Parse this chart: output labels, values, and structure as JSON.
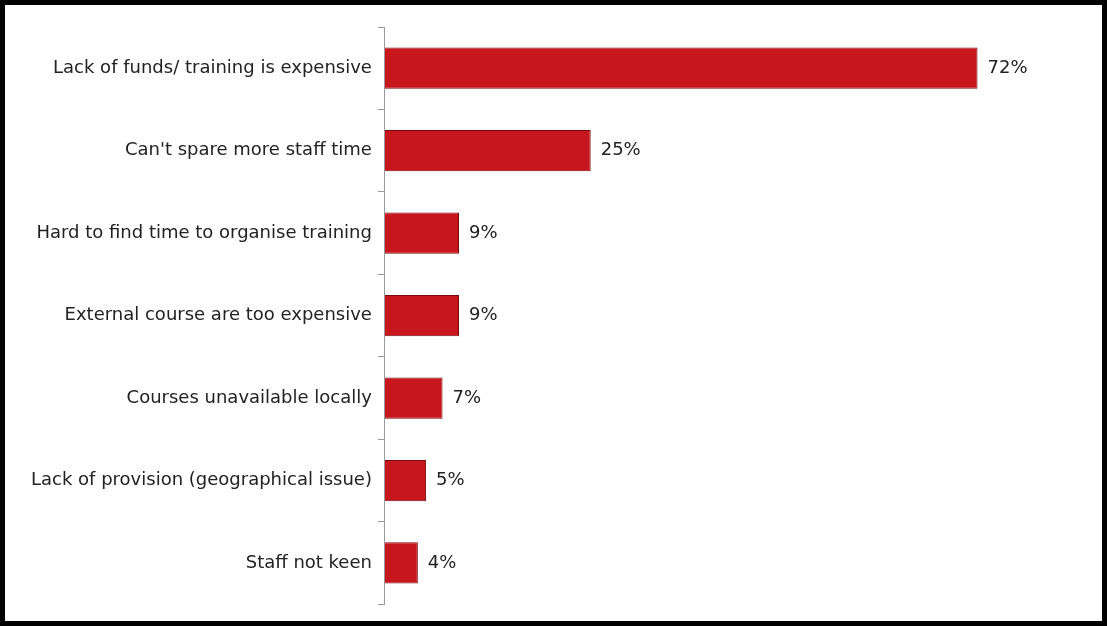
{
  "chart_data": {
    "type": "bar",
    "orientation": "horizontal",
    "categories": [
      "Lack of funds/ training is expensive",
      "Can't spare more staff time",
      "Hard to find time to organise training",
      "External course are too expensive",
      "Courses unavailable locally",
      "Lack of provision (geographical issue)",
      "Staff not keen"
    ],
    "values": [
      72,
      25,
      9,
      9,
      7,
      5,
      4
    ],
    "value_labels": [
      "72%",
      "25%",
      "9%",
      "9%",
      "7%",
      "5%",
      "4%"
    ],
    "color": "#c8161e",
    "grid": false,
    "legend": false
  }
}
